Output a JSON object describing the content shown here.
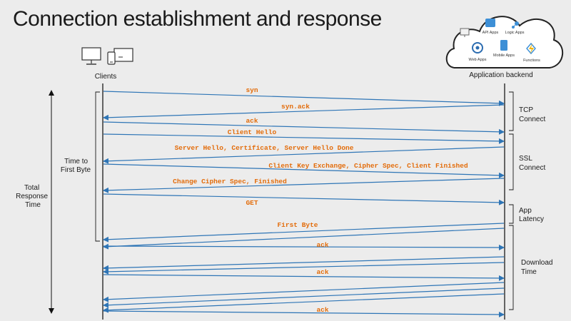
{
  "title": "Connection establishment and response",
  "clients_label": "Clients",
  "backend_label": "Application backend",
  "backend_apps": {
    "api": "API Apps",
    "logic": "Logic Apps",
    "web": "Web Apps",
    "mobile": "Mobile Apps",
    "functions": "Functions"
  },
  "left_labels": {
    "ttfb": [
      "Time to",
      "First Byte"
    ],
    "total": [
      "Total",
      "Response",
      "Time"
    ]
  },
  "phases": [
    {
      "key": "tcp",
      "lines": [
        "TCP",
        "Connect"
      ]
    },
    {
      "key": "ssl",
      "lines": [
        "SSL",
        "Connect"
      ]
    },
    {
      "key": "app",
      "lines": [
        "App",
        "Latency"
      ]
    },
    {
      "key": "download",
      "lines": [
        "Download",
        "Time"
      ]
    }
  ],
  "messages": [
    {
      "label": "syn",
      "from": "client"
    },
    {
      "label": "syn.ack",
      "from": "backend"
    },
    {
      "label": "ack",
      "from": "client"
    },
    {
      "label": "Client Hello",
      "from": "client"
    },
    {
      "label": "Server Hello, Certificate, Server Hello Done",
      "from": "backend"
    },
    {
      "label": "Client Key Exchange, Cipher Spec, Client Finished",
      "from": "client"
    },
    {
      "label": "Change Cipher Spec, Finished",
      "from": "backend"
    },
    {
      "label": "GET",
      "from": "client"
    },
    {
      "label": "First Byte",
      "from": "backend"
    },
    {
      "label": "",
      "from": "backend"
    },
    {
      "label": "ack",
      "from": "client"
    },
    {
      "label": "",
      "from": "backend"
    },
    {
      "label": "",
      "from": "backend"
    },
    {
      "label": "ack",
      "from": "client"
    },
    {
      "label": "",
      "from": "backend"
    },
    {
      "label": "",
      "from": "backend"
    },
    {
      "label": "",
      "from": "backend"
    },
    {
      "label": "ack",
      "from": "client"
    }
  ]
}
